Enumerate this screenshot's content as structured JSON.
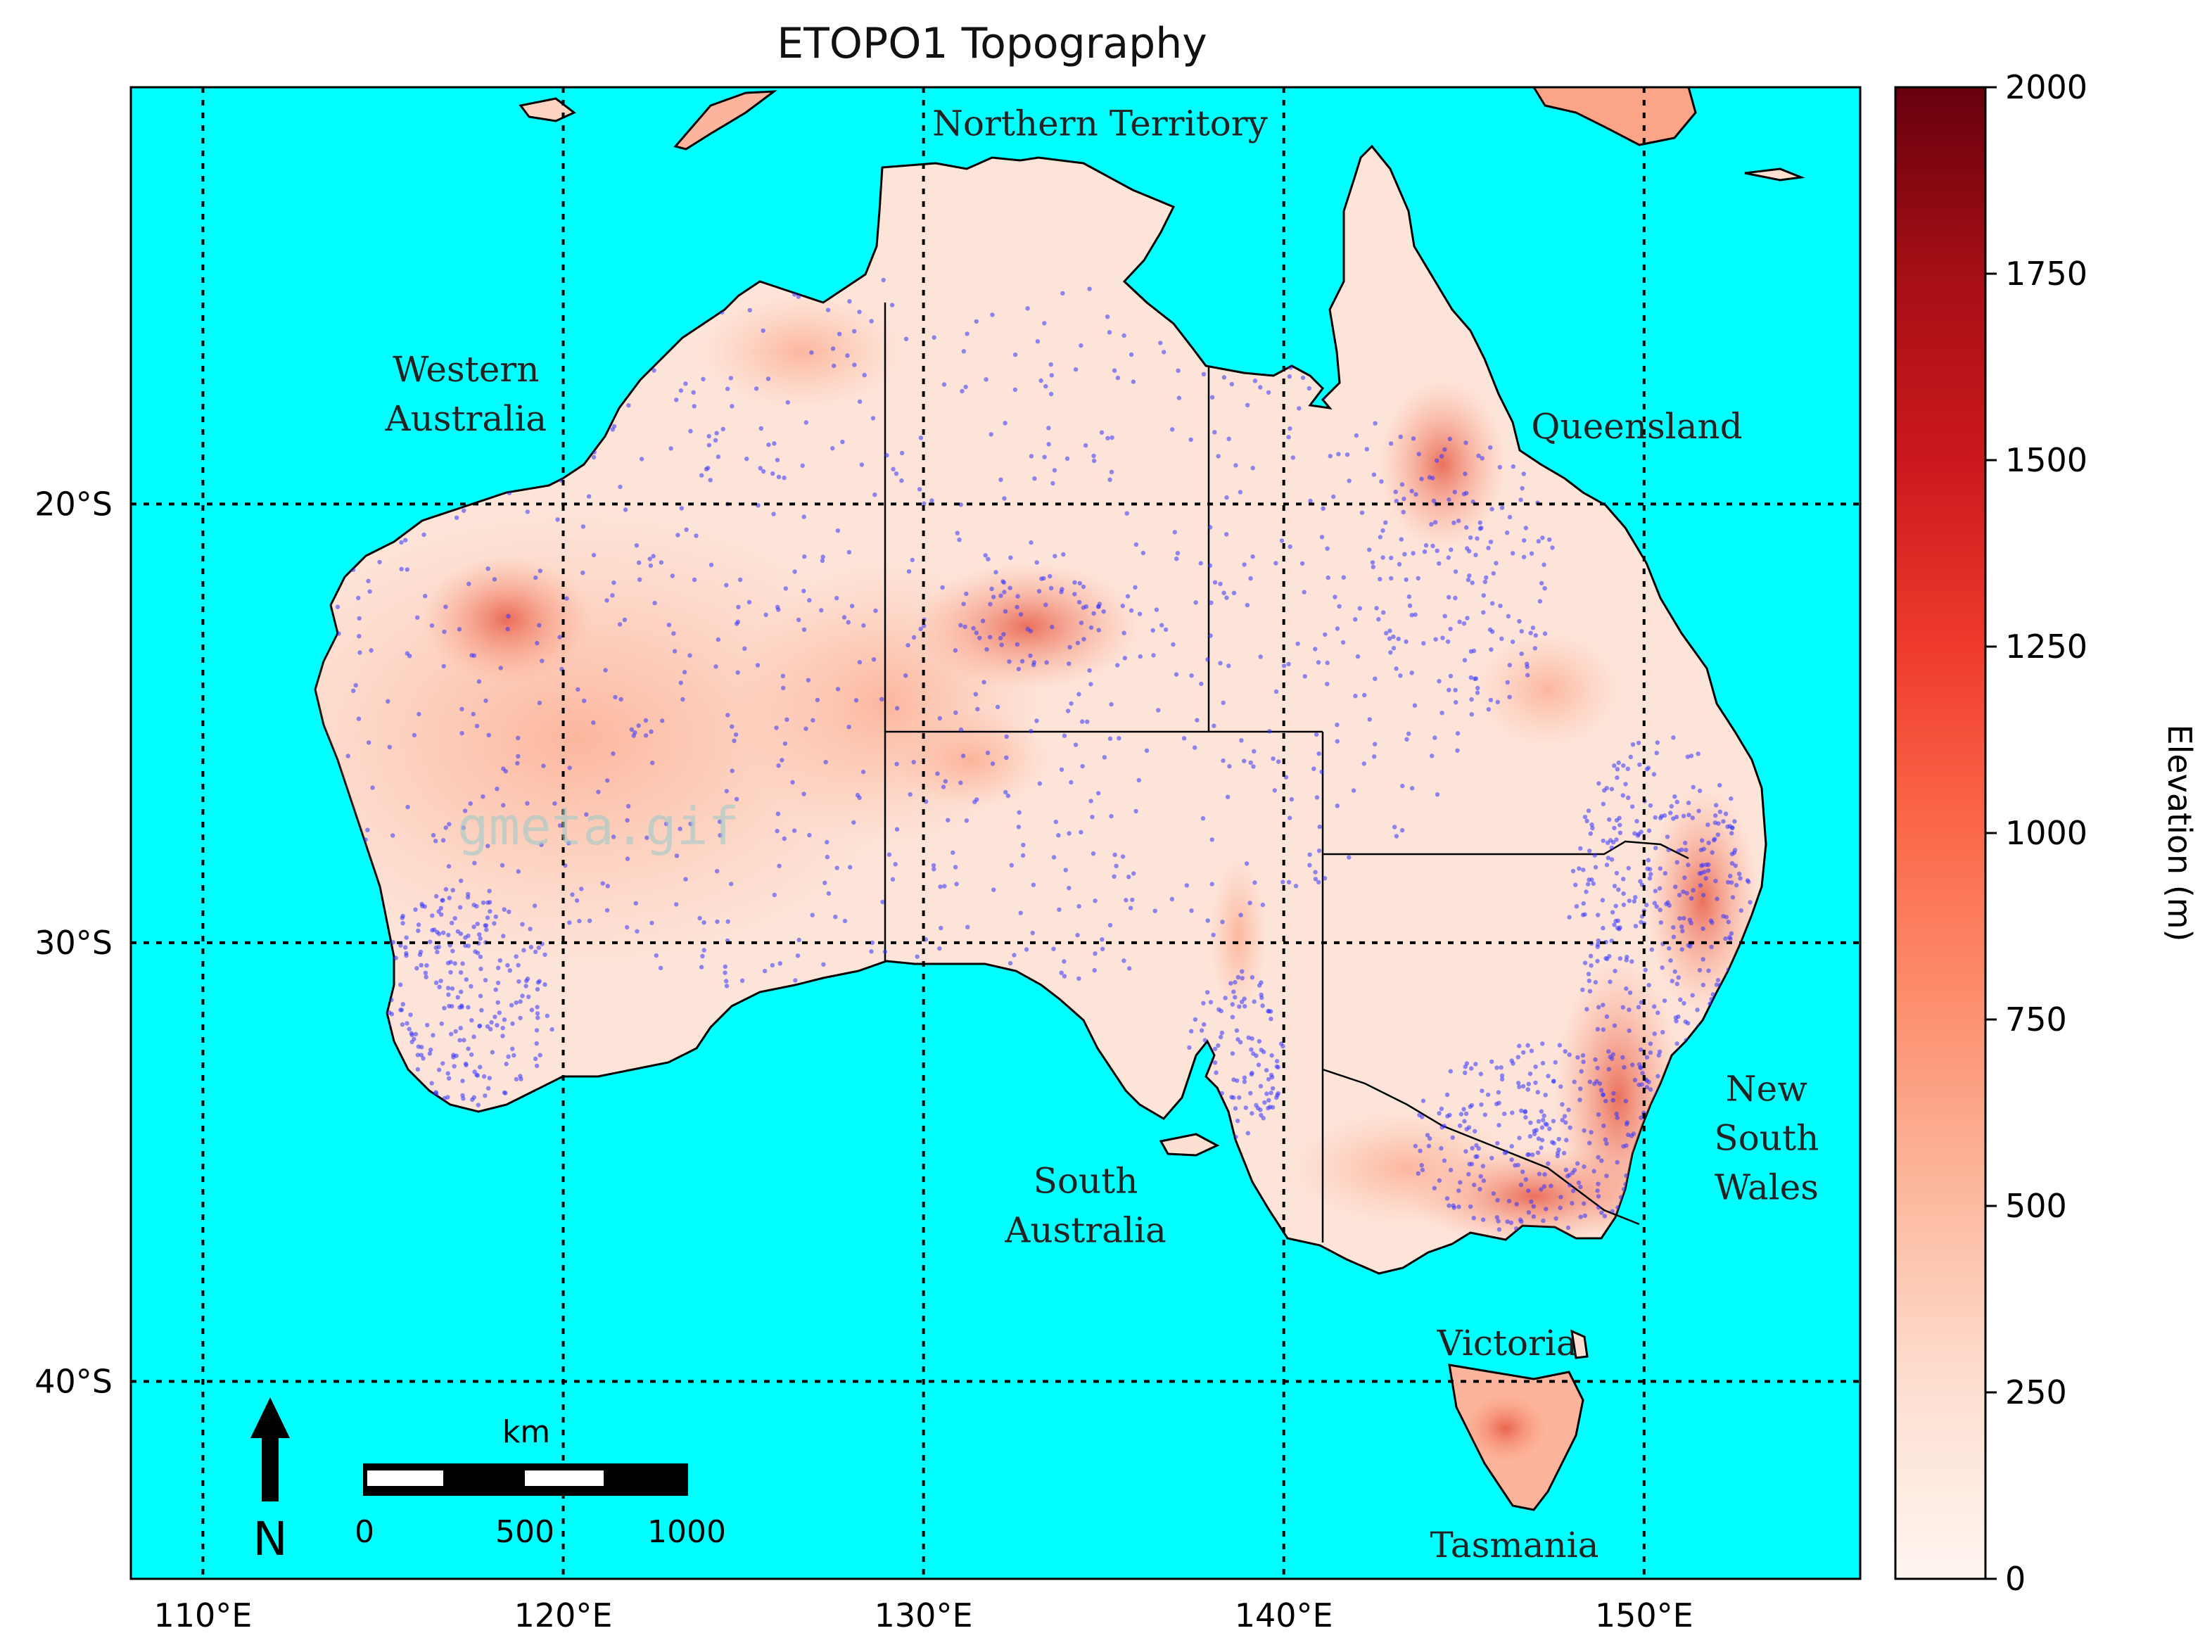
{
  "title": "ETOPO1 Topography",
  "watermark": "gmeta.gif",
  "colors": {
    "ocean": "#00ffff",
    "land_low": "#fff3ee",
    "land_high": "#67000d",
    "stations": "#3333ff",
    "grid": "#000000"
  },
  "map": {
    "lon_range": [
      108,
      156
    ],
    "lat_range": [
      -10.5,
      -44.5
    ],
    "lon_ticks": [
      {
        "value": 110,
        "label": "110°E"
      },
      {
        "value": 120,
        "label": "120°E"
      },
      {
        "value": 130,
        "label": "130°E"
      },
      {
        "value": 140,
        "label": "140°E"
      },
      {
        "value": 150,
        "label": "150°E"
      }
    ],
    "lat_ticks": [
      {
        "value": -20,
        "label": "20°S"
      },
      {
        "value": -30,
        "label": "30°S"
      },
      {
        "value": -40,
        "label": "40°S"
      }
    ]
  },
  "regions": [
    {
      "lines": [
        "Northern Territory"
      ],
      "lon": 134.9,
      "lat": -11.6
    },
    {
      "lines": [
        "Western",
        "Australia"
      ],
      "lon": 117.3,
      "lat": -17.2
    },
    {
      "lines": [
        "Queensland"
      ],
      "lon": 149.8,
      "lat": -18.5
    },
    {
      "lines": [
        "South",
        "Australia"
      ],
      "lon": 134.5,
      "lat": -35.7
    },
    {
      "lines": [
        "New",
        "South",
        "Wales"
      ],
      "lon": 153.4,
      "lat": -33.6
    },
    {
      "lines": [
        "Victoria"
      ],
      "lon": 146.2,
      "lat": -39.4
    },
    {
      "lines": [
        "Tasmania"
      ],
      "lon": 146.4,
      "lat": -44.0
    }
  ],
  "north_arrow": {
    "label": "N"
  },
  "scale_bar": {
    "unit": "km",
    "labels": [
      "0",
      "500",
      "1000"
    ]
  },
  "colorbar": {
    "label": "Elevation (m)",
    "min": 0,
    "max": 2000,
    "ticks": [
      "0",
      "250",
      "500",
      "750",
      "1000",
      "1250",
      "1500",
      "1750",
      "2000"
    ]
  }
}
